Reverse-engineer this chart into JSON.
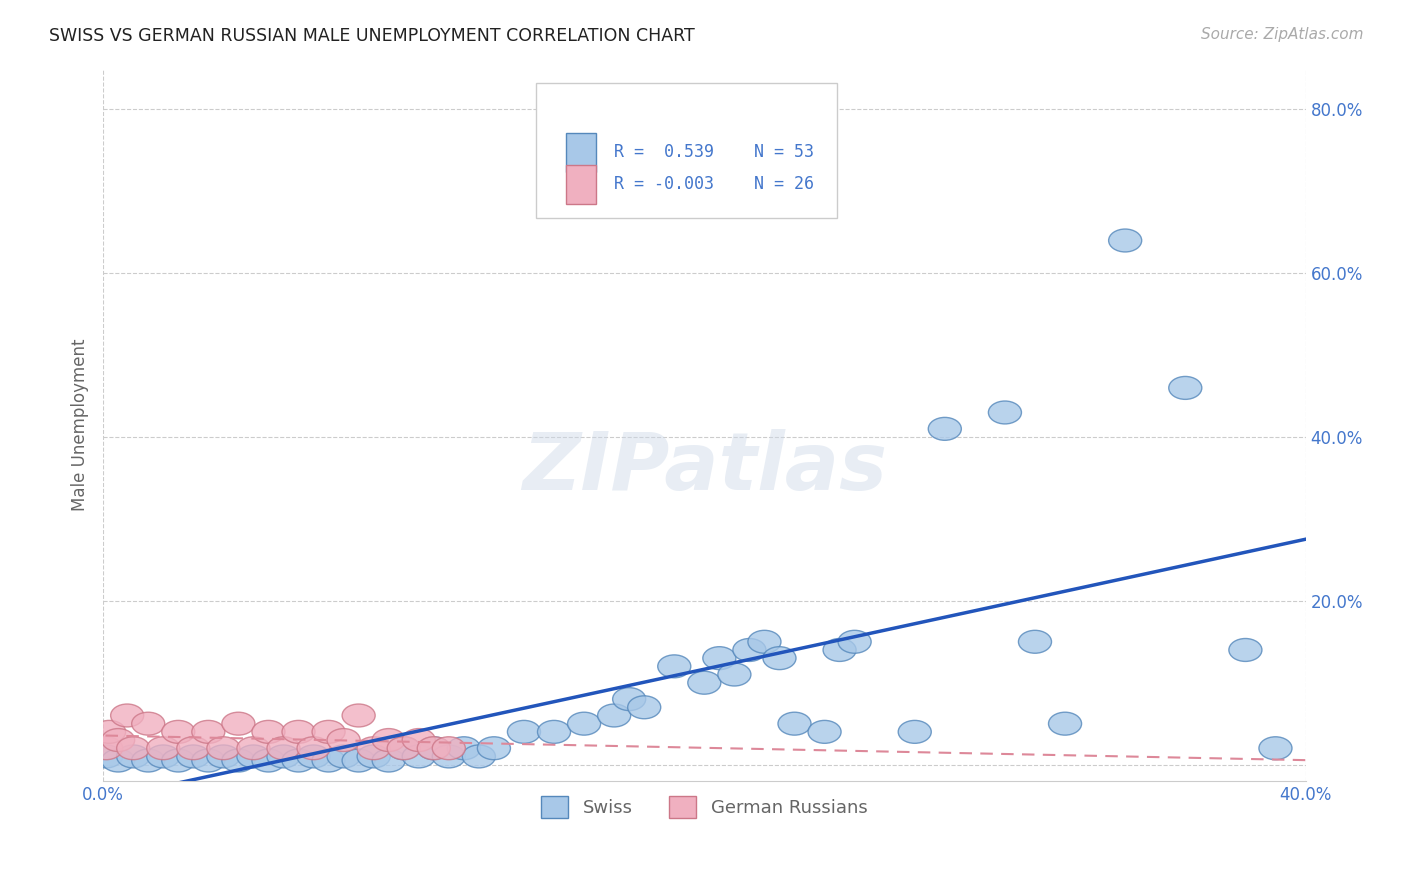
{
  "title": "SWISS VS GERMAN RUSSIAN MALE UNEMPLOYMENT CORRELATION CHART",
  "source": "Source: ZipAtlas.com",
  "ylabel": "Male Unemployment",
  "xlim": [
    0.0,
    0.4
  ],
  "ylim": [
    -0.02,
    0.85
  ],
  "xticks": [
    0.0,
    0.1,
    0.2,
    0.3,
    0.4
  ],
  "xticklabels": [
    "0.0%",
    "",
    "",
    "",
    "40.0%"
  ],
  "yticks": [
    0.0,
    0.2,
    0.4,
    0.6,
    0.8
  ],
  "yticklabels": [
    "",
    "20.0%",
    "40.0%",
    "60.0%",
    "80.0%"
  ],
  "grid_color": "#cccccc",
  "background_color": "#ffffff",
  "swiss_color": "#a8c8e8",
  "swiss_edge_color": "#5588bb",
  "german_russian_color": "#f0b0c0",
  "german_russian_edge_color": "#cc7788",
  "trend_swiss_color": "#2255bb",
  "trend_german_color": "#dd8899",
  "swiss_R": 0.539,
  "swiss_N": 53,
  "german_R": -0.003,
  "german_N": 26,
  "swiss_points_x": [
    0.001,
    0.005,
    0.01,
    0.015,
    0.02,
    0.025,
    0.03,
    0.035,
    0.04,
    0.045,
    0.05,
    0.055,
    0.06,
    0.065,
    0.07,
    0.075,
    0.08,
    0.085,
    0.09,
    0.095,
    0.1,
    0.105,
    0.11,
    0.115,
    0.12,
    0.125,
    0.13,
    0.14,
    0.15,
    0.16,
    0.17,
    0.175,
    0.18,
    0.19,
    0.2,
    0.205,
    0.21,
    0.215,
    0.22,
    0.225,
    0.23,
    0.24,
    0.245,
    0.25,
    0.27,
    0.28,
    0.3,
    0.31,
    0.32,
    0.34,
    0.36,
    0.38,
    0.39
  ],
  "swiss_points_y": [
    0.01,
    0.005,
    0.01,
    0.005,
    0.01,
    0.005,
    0.01,
    0.005,
    0.01,
    0.005,
    0.01,
    0.005,
    0.01,
    0.005,
    0.01,
    0.005,
    0.01,
    0.005,
    0.01,
    0.005,
    0.02,
    0.01,
    0.02,
    0.01,
    0.02,
    0.01,
    0.02,
    0.04,
    0.04,
    0.05,
    0.06,
    0.08,
    0.07,
    0.12,
    0.1,
    0.13,
    0.11,
    0.14,
    0.15,
    0.13,
    0.05,
    0.04,
    0.14,
    0.15,
    0.04,
    0.41,
    0.43,
    0.15,
    0.05,
    0.64,
    0.46,
    0.14,
    0.02
  ],
  "german_russian_points_x": [
    0.001,
    0.002,
    0.005,
    0.008,
    0.01,
    0.015,
    0.02,
    0.025,
    0.03,
    0.035,
    0.04,
    0.045,
    0.05,
    0.055,
    0.06,
    0.065,
    0.07,
    0.075,
    0.08,
    0.085,
    0.09,
    0.095,
    0.1,
    0.105,
    0.11,
    0.115
  ],
  "german_russian_points_y": [
    0.02,
    0.04,
    0.03,
    0.06,
    0.02,
    0.05,
    0.02,
    0.04,
    0.02,
    0.04,
    0.02,
    0.05,
    0.02,
    0.04,
    0.02,
    0.04,
    0.02,
    0.04,
    0.03,
    0.06,
    0.02,
    0.03,
    0.02,
    0.03,
    0.02,
    0.02
  ],
  "watermark_text": "ZIPatlas",
  "legend_text_color": "#4477cc",
  "tick_color": "#4477cc"
}
